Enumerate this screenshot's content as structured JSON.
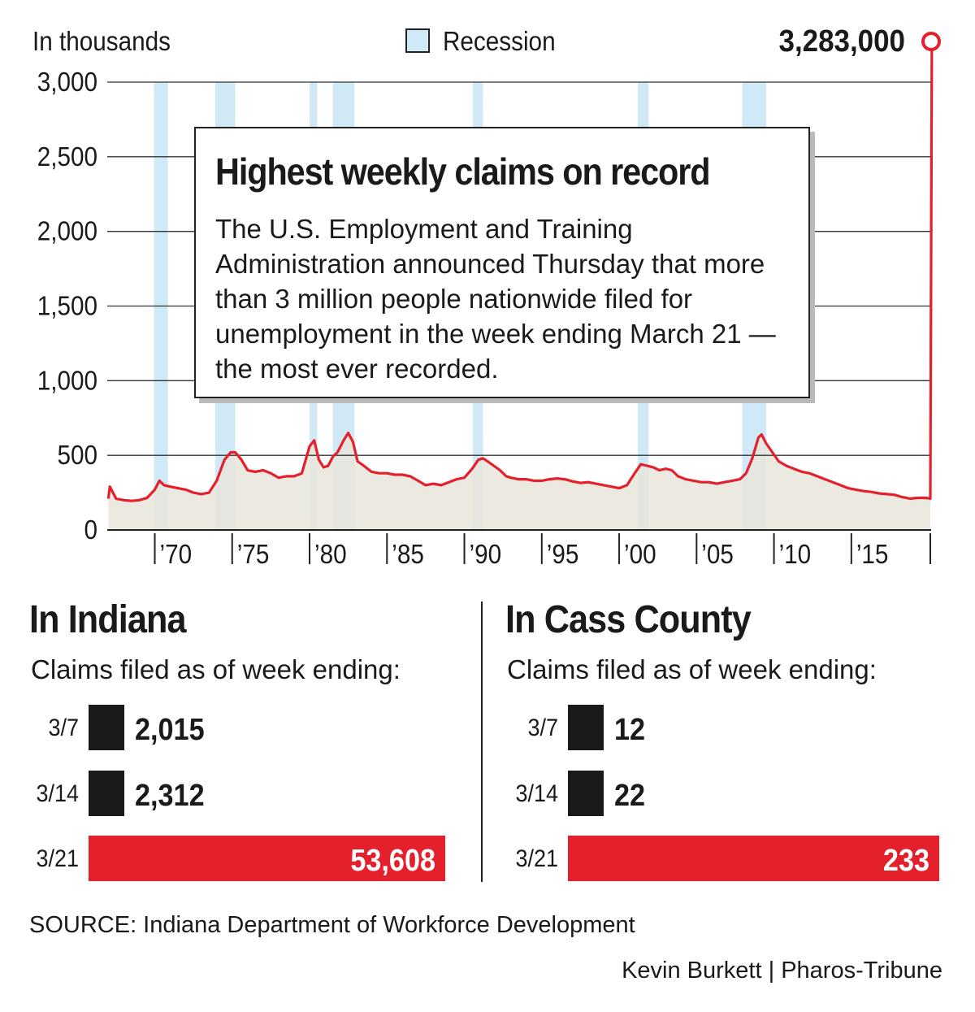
{
  "main_chart": {
    "y_unit_label": "In thousands",
    "legend_label": "Recession",
    "peak_label": "3,283,000",
    "colors": {
      "line": "#e3202b",
      "area": "#e8e5da",
      "recession": "#cfe9f7",
      "grid": "#333333"
    },
    "callout": {
      "title": "Highest weekly claims on record",
      "body": "The U.S. Employment and Training Administration announced Thursday that more than 3 million people nationwide filed for unemployment in the week ending March 21 — the most ever recorded."
    }
  },
  "indiana": {
    "title": "In Indiana",
    "subtitle": "Claims filed as of week ending:",
    "rows": [
      {
        "date": "3/7",
        "value_label": "2,015"
      },
      {
        "date": "3/14",
        "value_label": "2,312"
      },
      {
        "date": "3/21",
        "value_label": "53,608"
      }
    ]
  },
  "cass": {
    "title": "In Cass County",
    "subtitle": "Claims filed as of week ending:",
    "rows": [
      {
        "date": "3/7",
        "value_label": "12"
      },
      {
        "date": "3/14",
        "value_label": "22"
      },
      {
        "date": "3/21",
        "value_label": "233"
      }
    ]
  },
  "source": "SOURCE: Indiana Department of Workforce Development",
  "credit": "Kevin Burkett | Pharos-Tribune",
  "chart_data": [
    {
      "type": "area",
      "ylabel": "In thousands",
      "ylim": [
        0,
        3000
      ],
      "xlim": [
        1967.0,
        2020.25
      ],
      "y_ticks": [
        "0",
        "500",
        "1,000",
        "1,500",
        "2,000",
        "2,500",
        "3,000"
      ],
      "y_tick_values": [
        0,
        500,
        1000,
        1500,
        2000,
        2500,
        3000
      ],
      "x_ticks": [
        "’70",
        "’75",
        "’80",
        "’85",
        "’90",
        "’95",
        "’00",
        "’05",
        "’10",
        "’15"
      ],
      "x_tick_values": [
        1970,
        1975,
        1980,
        1985,
        1990,
        1995,
        2000,
        2005,
        2010,
        2015
      ],
      "grid": true,
      "legend": "top-center",
      "recessions": [
        [
          1969.95,
          1970.85
        ],
        [
          1973.9,
          1975.2
        ],
        [
          1980.0,
          1980.5
        ],
        [
          1981.5,
          1982.9
        ],
        [
          1990.55,
          1991.2
        ],
        [
          2001.2,
          2001.9
        ],
        [
          2007.95,
          2009.5
        ]
      ],
      "series": [
        {
          "x": [
            1967.0,
            1967.1,
            1967.5,
            1968.0,
            1968.5,
            1969.0,
            1969.5,
            1970.0,
            1970.3,
            1970.6,
            1971.0,
            1971.5,
            1972.0,
            1972.5,
            1973.0,
            1973.5,
            1974.0,
            1974.5,
            1974.9,
            1975.2,
            1975.6,
            1976.0,
            1976.5,
            1977.0,
            1977.5,
            1978.0,
            1978.5,
            1979.0,
            1979.5,
            1980.0,
            1980.3,
            1980.6,
            1980.9,
            1981.2,
            1981.5,
            1981.8,
            1982.2,
            1982.5,
            1982.8,
            1983.1,
            1983.5,
            1984.0,
            1984.5,
            1985.0,
            1985.5,
            1986.0,
            1986.5,
            1987.0,
            1987.5,
            1988.0,
            1988.5,
            1989.0,
            1989.5,
            1990.0,
            1990.5,
            1990.9,
            1991.2,
            1991.5,
            1991.9,
            1992.3,
            1992.7,
            1993.0,
            1993.5,
            1994.0,
            1994.5,
            1995.0,
            1995.5,
            1996.0,
            1996.5,
            1997.0,
            1997.5,
            1998.0,
            1998.5,
            1999.0,
            1999.5,
            2000.0,
            2000.5,
            2001.0,
            2001.4,
            2001.8,
            2002.2,
            2002.6,
            2003.0,
            2003.4,
            2003.8,
            2004.3,
            2004.8,
            2005.3,
            2005.8,
            2006.3,
            2006.8,
            2007.3,
            2007.8,
            2008.2,
            2008.6,
            2009.0,
            2009.2,
            2009.5,
            2009.9,
            2010.3,
            2010.8,
            2011.3,
            2011.8,
            2012.3,
            2012.8,
            2013.3,
            2013.8,
            2014.3,
            2014.8,
            2015.3,
            2015.8,
            2016.3,
            2016.8,
            2017.3,
            2017.8,
            2018.3,
            2018.8,
            2019.3,
            2019.8,
            2020.1,
            2020.2
          ],
          "y": [
            210,
            290,
            210,
            200,
            195,
            200,
            215,
            270,
            330,
            300,
            290,
            280,
            270,
            250,
            240,
            250,
            330,
            470,
            520,
            520,
            470,
            400,
            390,
            400,
            380,
            350,
            360,
            360,
            380,
            560,
            600,
            470,
            420,
            430,
            490,
            520,
            600,
            650,
            590,
            460,
            430,
            390,
            380,
            380,
            370,
            370,
            360,
            330,
            300,
            310,
            300,
            320,
            340,
            350,
            410,
            470,
            480,
            460,
            430,
            400,
            360,
            350,
            340,
            340,
            330,
            330,
            340,
            345,
            340,
            325,
            315,
            320,
            310,
            300,
            290,
            280,
            300,
            380,
            440,
            430,
            420,
            400,
            410,
            400,
            360,
            340,
            330,
            320,
            320,
            310,
            320,
            330,
            340,
            380,
            480,
            620,
            640,
            580,
            520,
            460,
            430,
            410,
            390,
            380,
            360,
            340,
            320,
            300,
            280,
            270,
            260,
            255,
            245,
            240,
            235,
            220,
            210,
            215,
            215,
            210,
            3283
          ]
        }
      ]
    },
    {
      "type": "bar",
      "title": "In Indiana",
      "subtitle": "Claims filed as of week ending:",
      "categories": [
        "3/7",
        "3/14",
        "3/21"
      ],
      "values": [
        2015,
        2312,
        53608
      ]
    },
    {
      "type": "bar",
      "title": "In Cass County",
      "subtitle": "Claims filed as of week ending:",
      "categories": [
        "3/7",
        "3/14",
        "3/21"
      ],
      "values": [
        12,
        22,
        233
      ]
    }
  ]
}
